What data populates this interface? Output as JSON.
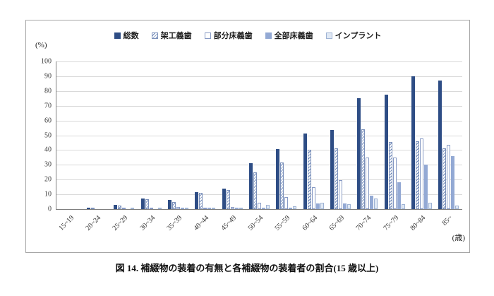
{
  "caption": "図 14. 補綴物の装着の有無と各補綴物の装着者の割合(15 歳以上)",
  "chart_data": {
    "type": "bar",
    "title": "",
    "ylabel_unit": "(%)",
    "xlabel_unit": "(歳)",
    "ylim": [
      0,
      100
    ],
    "ytick_step": 10,
    "grid": true,
    "legend_position": "top",
    "categories": [
      "15~19",
      "20~24",
      "25~29",
      "30~34",
      "35~39",
      "40~44",
      "45~49",
      "50~54",
      "55~59",
      "60~64",
      "65~69",
      "70~74",
      "75~79",
      "80~84",
      "85~"
    ],
    "series": [
      {
        "name": "総数",
        "color": "#2e4d85",
        "pattern": "solid",
        "values": [
          0,
          0.5,
          3.0,
          7.0,
          6.0,
          11.5,
          14.0,
          31.0,
          40.5,
          51.0,
          53.5,
          75.0,
          77.5,
          90.0,
          87.0
        ]
      },
      {
        "name": "架工義歯",
        "color": "#7b90ba",
        "pattern": "diagonal-hatch",
        "values": [
          0,
          0.3,
          2.5,
          6.5,
          5.0,
          11.0,
          13.0,
          25.0,
          31.5,
          40.0,
          41.0,
          54.0,
          45.5,
          46.0,
          41.0
        ]
      },
      {
        "name": "部分床義歯",
        "color": "#ffffff",
        "pattern": "outline",
        "values": [
          0,
          0,
          0.3,
          0.8,
          1.2,
          1.0,
          1.5,
          4.5,
          8.0,
          15.0,
          19.5,
          35.0,
          35.0,
          48.0,
          43.5
        ]
      },
      {
        "name": "全部床義歯",
        "color": "#93a9d4",
        "pattern": "solid",
        "values": [
          0,
          0,
          0,
          0,
          0.2,
          0.3,
          0.5,
          1.0,
          1.0,
          4.0,
          4.0,
          9.0,
          18.0,
          30.0,
          36.0
        ]
      },
      {
        "name": "インプラント",
        "color": "#dfe8f4",
        "pattern": "outline-pale",
        "values": [
          0,
          0,
          0.2,
          0.3,
          0.3,
          0.5,
          0.8,
          3.0,
          2.0,
          4.5,
          3.5,
          7.0,
          3.5,
          4.5,
          2.5
        ]
      }
    ]
  }
}
